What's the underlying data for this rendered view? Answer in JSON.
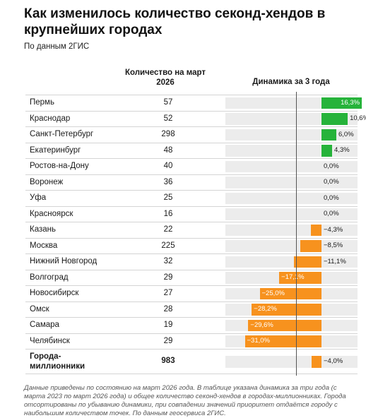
{
  "title": "Как изменилось количество секонд-хендов в крупнейших городах",
  "subtitle": "По данным 2ГИС",
  "columns": {
    "count_header": "Количество на март 2026",
    "dynamics_header": "Динамика за 3 года"
  },
  "colors": {
    "positive": "#26b33a",
    "negative": "#f7921e",
    "track": "#ececec"
  },
  "chart_data": {
    "type": "bar",
    "xlim": [
      -40,
      20
    ],
    "rows": [
      {
        "city": "Пермь",
        "count": "57",
        "value": 16.3,
        "label": "16,3%"
      },
      {
        "city": "Краснодар",
        "count": "52",
        "value": 10.6,
        "label": "10,6%"
      },
      {
        "city": "Санкт-Петербург",
        "count": "298",
        "value": 6.0,
        "label": "6,0%"
      },
      {
        "city": "Екатеринбург",
        "count": "48",
        "value": 4.3,
        "label": "4,3%"
      },
      {
        "city": "Ростов-на-Дону",
        "count": "40",
        "value": 0.0,
        "label": "0,0%"
      },
      {
        "city": "Воронеж",
        "count": "36",
        "value": 0.0,
        "label": "0,0%"
      },
      {
        "city": "Уфа",
        "count": "25",
        "value": 0.0,
        "label": "0,0%"
      },
      {
        "city": "Красноярск",
        "count": "16",
        "value": 0.0,
        "label": "0,0%"
      },
      {
        "city": "Казань",
        "count": "22",
        "value": -4.3,
        "label": "−4,3%"
      },
      {
        "city": "Москва",
        "count": "225",
        "value": -8.5,
        "label": "−8,5%"
      },
      {
        "city": "Нижний Новгород",
        "count": "32",
        "value": -11.1,
        "label": "−11,1%"
      },
      {
        "city": "Волгоград",
        "count": "29",
        "value": -17.1,
        "label": "−17,1%"
      },
      {
        "city": "Новосибирск",
        "count": "27",
        "value": -25.0,
        "label": "−25,0%"
      },
      {
        "city": "Омск",
        "count": "28",
        "value": -28.2,
        "label": "−28,2%"
      },
      {
        "city": "Самара",
        "count": "19",
        "value": -29.6,
        "label": "−29,6%"
      },
      {
        "city": "Челябинск",
        "count": "29",
        "value": -31.0,
        "label": "−31,0%"
      },
      {
        "city": "Города-миллионники",
        "count": "983",
        "value": -4.0,
        "label": "−4,0%",
        "total": true
      }
    ]
  },
  "footnote": "Данные приведены по состоянию на март 2026 года. В таблице указана динамика за три года (с марта 2023 по март 2026 года) и общее количество секонд-хендов в городах-миллионниках. Города отсортированы по убыванию динамики, при совпадении значений приоритет отдаётся городу с наибольшим количеством точек. По данным геосервиса 2ГИС."
}
